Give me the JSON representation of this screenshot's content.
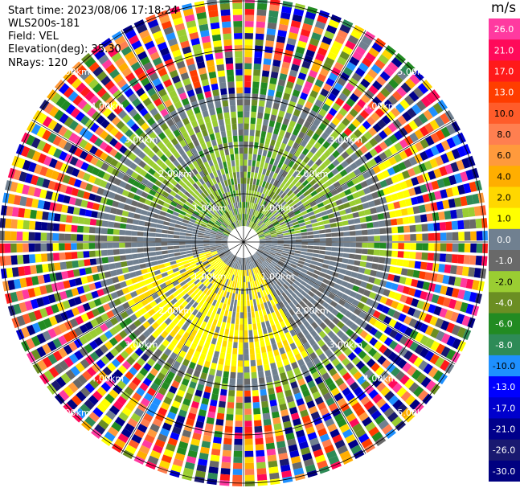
{
  "info": {
    "start_time": "Start time: 2023/08/06 17:18:24",
    "instrument": "WLS200s-181",
    "field": "Field: VEL",
    "elevation": "Elevation(deg): 35.30",
    "nrays": "NRays: 120"
  },
  "colorbar": {
    "title": "m/s",
    "ticks": [
      "26.0",
      "21.0",
      "17.0",
      "13.0",
      "10.0",
      "8.0",
      "6.0",
      "4.0",
      "2.0",
      "1.0",
      "0.0",
      "-1.0",
      "-2.0",
      "-4.0",
      "-6.0",
      "-8.0",
      "-10.0",
      "-13.0",
      "-17.0",
      "-21.0",
      "-26.0",
      "-30.0"
    ],
    "colors": [
      "#ff3aa0",
      "#ff0a5a",
      "#ff1a1a",
      "#ff3d00",
      "#ff5c2a",
      "#ff7f50",
      "#ff9a3c",
      "#ffae00",
      "#ffd700",
      "#ffff00",
      "#708090",
      "#696969",
      "#9acd32",
      "#6b8e23",
      "#228b22",
      "#2e8b57",
      "#1e90ff",
      "#0000ff",
      "#0000cd",
      "#00008b",
      "#191970",
      "#000080"
    ]
  },
  "chart_data": {
    "type": "heatmap",
    "projection": "polar PPI",
    "field": "VEL",
    "units": "m/s",
    "nrays": 120,
    "elevation_deg": 35.3,
    "range_rings_km": [
      1,
      2,
      3,
      4,
      5
    ],
    "range_ring_labels": [
      "1.00km",
      "2.00km",
      "3.00km",
      "4.00km",
      "5.00km"
    ],
    "spoke_angles_deg": [
      0,
      30,
      60,
      90,
      120,
      150,
      180,
      210,
      240,
      270,
      300,
      330
    ],
    "max_range_km": 5.2,
    "color_scale_min": -30,
    "color_scale_max": 26
  }
}
